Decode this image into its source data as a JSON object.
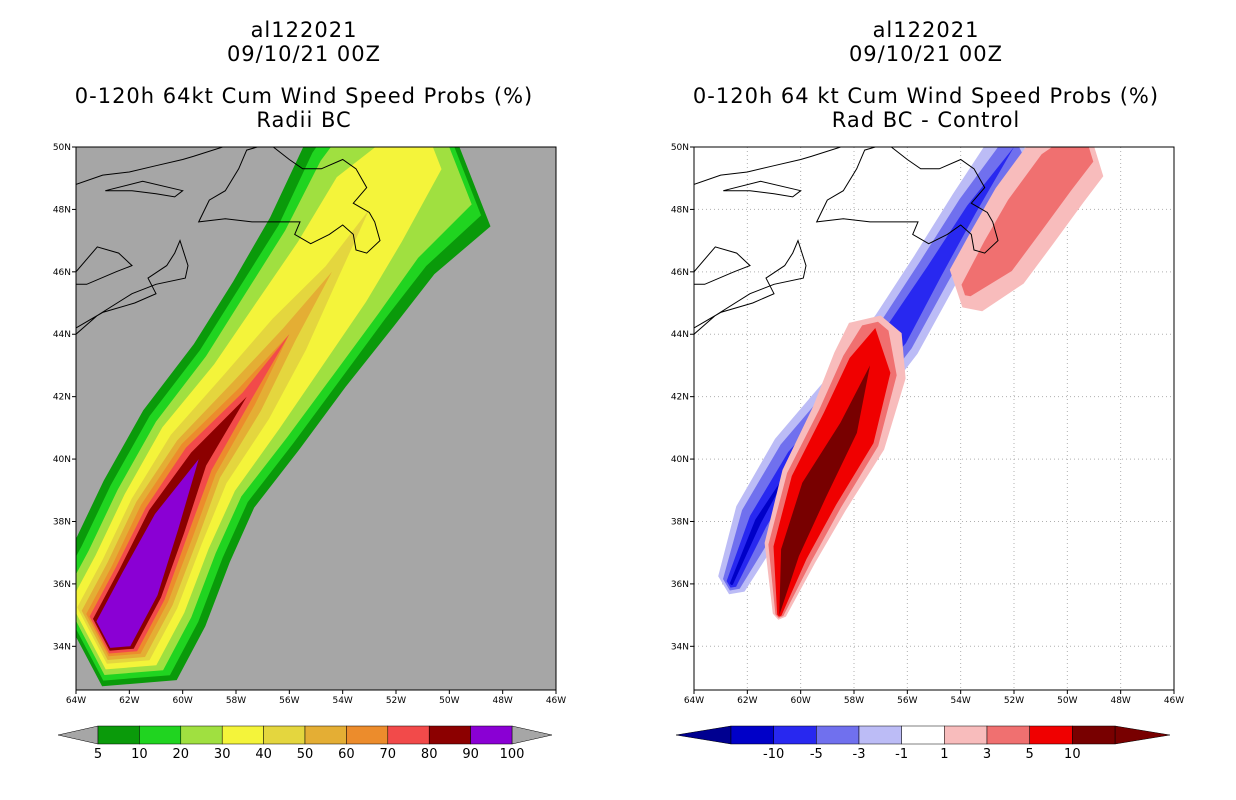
{
  "chart_data": [
    {
      "type": "heatmap",
      "storm_id": "al122021",
      "date": "09/10/21 00Z",
      "title": "0-120h 64kt Cum Wind Speed Probs (%)",
      "subtitle": "Radii BC",
      "xlim": [
        -64,
        -46
      ],
      "ylim": [
        32.6,
        50
      ],
      "x_ticks": [
        "64W",
        "62W",
        "60W",
        "58W",
        "56W",
        "54W",
        "52W",
        "50W",
        "48W",
        "46W"
      ],
      "y_ticks": [
        "34N",
        "36N",
        "38N",
        "40N",
        "42N",
        "44N",
        "46N",
        "48N",
        "50N"
      ],
      "grid": false,
      "background": "#a6a6a6",
      "colorbar": {
        "labels": [
          "5",
          "10",
          "20",
          "30",
          "40",
          "50",
          "60",
          "70",
          "80",
          "90",
          "100"
        ],
        "colors": [
          "#0a9a0a",
          "#20d420",
          "#a0e040",
          "#f4f43a",
          "#e4d63e",
          "#e4ae34",
          "#ec8c2c",
          "#f24a4a",
          "#8c0000",
          "#8a00d4"
        ],
        "under": "#a6a6a6",
        "over": "#a6a6a6"
      },
      "track": [
        [
          -62.6,
          34.4
        ],
        [
          -61.6,
          36
        ],
        [
          -60.6,
          38
        ],
        [
          -59.4,
          40
        ],
        [
          -57.6,
          42
        ],
        [
          -56,
          44
        ],
        [
          -54.4,
          46
        ],
        [
          -53,
          48
        ],
        [
          -51,
          50
        ]
      ],
      "contours": [
        {
          "level": 5,
          "color": "#0a9a0a",
          "width": [
            2.8,
            2.8,
            2.7,
            2.6,
            2.6,
            2.7,
            2.9,
            3.2,
            3.6
          ]
        },
        {
          "level": 10,
          "color": "#20d420",
          "width": [
            2.5,
            2.5,
            2.4,
            2.3,
            2.3,
            2.4,
            2.5,
            2.8,
            3.1
          ]
        },
        {
          "level": 20,
          "color": "#a0e040",
          "width": [
            2.2,
            2.2,
            2.1,
            2.0,
            2.0,
            2.1,
            2.2,
            2.4,
            2.6
          ]
        },
        {
          "level": 30,
          "color": "#f4f43a",
          "width": [
            1.9,
            1.9,
            1.8,
            1.7,
            1.6,
            1.6,
            1.6,
            1.6,
            1.0
          ]
        },
        {
          "level": 40,
          "color": "#e4d63e",
          "width": [
            1.6,
            1.6,
            1.5,
            1.3,
            1.1,
            0.8,
            0.3,
            0.0,
            0.0
          ]
        },
        {
          "level": 50,
          "color": "#e4ae34",
          "width": [
            1.4,
            1.4,
            1.3,
            1.0,
            0.7,
            0.3,
            0.0,
            0.0,
            0.0
          ]
        },
        {
          "level": 60,
          "color": "#ec8c2c",
          "width": [
            1.2,
            1.2,
            1.1,
            0.8,
            0.4,
            0.0,
            0.0,
            0.0,
            0.0
          ]
        },
        {
          "level": 70,
          "color": "#f24a4a",
          "width": [
            1.05,
            1.05,
            0.9,
            0.6,
            0.2,
            0.0,
            0.0,
            0.0,
            0.0
          ]
        },
        {
          "level": 80,
          "color": "#8c0000",
          "width": [
            0.9,
            0.9,
            0.75,
            0.35,
            0.0,
            0.0,
            0.0,
            0.0,
            0.0
          ]
        },
        {
          "level": 90,
          "color": "#8a00d4",
          "width": [
            0.75,
            0.75,
            0.5,
            0.0,
            0.0,
            0.0,
            0.0,
            0.0,
            0.0
          ]
        }
      ]
    },
    {
      "type": "heatmap",
      "storm_id": "al122021",
      "date": "09/10/21 00Z",
      "title": "0-120h 64 kt Cum Wind Speed Probs (%)",
      "subtitle": "Rad BC - Control",
      "xlim": [
        -64,
        -46
      ],
      "ylim": [
        32.6,
        50
      ],
      "x_ticks": [
        "64W",
        "62W",
        "60W",
        "58W",
        "56W",
        "54W",
        "52W",
        "50W",
        "48W",
        "46W"
      ],
      "y_ticks": [
        "34N",
        "36N",
        "38N",
        "40N",
        "42N",
        "44N",
        "46N",
        "48N",
        "50N"
      ],
      "grid": true,
      "background": "#ffffff",
      "colorbar": {
        "labels": [
          "-10",
          "-5",
          "-3",
          "-1",
          "1",
          "3",
          "5",
          "10"
        ],
        "colors": [
          "#0000c8",
          "#2828f0",
          "#7070ee",
          "#bcbcf6",
          "#ffffff",
          "#f8bcbc",
          "#f07070",
          "#f00000",
          "#780000"
        ],
        "under": "#000090",
        "over": "#780000"
      },
      "negative_band": {
        "track": [
          [
            -62.6,
            36
          ],
          [
            -61.6,
            38
          ],
          [
            -60.2,
            40
          ],
          [
            -58.2,
            42
          ],
          [
            -56.4,
            44
          ],
          [
            -55,
            46
          ],
          [
            -53.6,
            48
          ],
          [
            -52,
            50
          ]
        ],
        "levels": [
          {
            "level": -1,
            "color": "#bcbcf6",
            "width": [
              0.55,
              0.95,
              1.0,
              1.0,
              1.0,
              0.9,
              0.85,
              0.9
            ]
          },
          {
            "level": -3,
            "color": "#7070ee",
            "width": [
              0.35,
              0.7,
              0.72,
              0.72,
              0.72,
              0.62,
              0.55,
              0.45
            ]
          },
          {
            "level": -5,
            "color": "#2828f0",
            "width": [
              0.2,
              0.35,
              0.35,
              0.3,
              0.45,
              0.3,
              0.2,
              0.0
            ]
          },
          {
            "level": -10,
            "color": "#0000c8",
            "width": [
              0.06,
              0.12,
              0.0,
              0.0,
              0.0,
              0.0,
              0.0,
              0.0
            ]
          }
        ]
      },
      "positive_band": {
        "track": [
          [
            -60.8,
            35
          ],
          [
            -60.4,
            37
          ],
          [
            -59.5,
            39
          ],
          [
            -58.2,
            41
          ],
          [
            -57.4,
            43
          ],
          [
            -57.2,
            44.2
          ]
        ],
        "levels": [
          {
            "level": 1,
            "color": "#f8bcbc",
            "width": [
              0.25,
              1.0,
              1.35,
              1.5,
              1.4,
              1.0
            ]
          },
          {
            "level": 3,
            "color": "#f07070",
            "width": [
              0.15,
              0.85,
              1.15,
              1.25,
              1.05,
              0.5
            ]
          },
          {
            "level": 5,
            "color": "#f00000",
            "width": [
              0.08,
              0.65,
              0.95,
              1.05,
              0.8,
              0.0
            ]
          },
          {
            "level": 10,
            "color": "#780000",
            "width": [
              0.0,
              0.35,
              0.5,
              0.35,
              0.0,
              0.0
            ]
          }
        ]
      },
      "positive_band_2": {
        "track": [
          [
            -53.8,
            45.4
          ],
          [
            -52.6,
            46.5
          ],
          [
            -51.6,
            47.8
          ],
          [
            -50.4,
            49.2
          ],
          [
            -49.4,
            50
          ]
        ],
        "levels": [
          {
            "level": 1,
            "color": "#f8bcbc",
            "width": [
              0.9,
              1.3,
              1.4,
              1.4,
              1.2
            ]
          },
          {
            "level": 3,
            "color": "#f07070",
            "width": [
              0.25,
              0.7,
              0.8,
              0.8,
              0.6
            ]
          }
        ]
      }
    }
  ],
  "coastlines": {
    "land_outlines": [
      [
        [
          -62.9,
          48.6
        ],
        [
          -61.9,
          48.6
        ],
        [
          -61.0,
          48.5
        ],
        [
          -60.3,
          48.4
        ],
        [
          -60.0,
          48.6
        ],
        [
          -61.5,
          48.9
        ],
        [
          -62.9,
          48.6
        ]
      ],
      [
        [
          -64,
          46.0
        ],
        [
          -63.2,
          46.8
        ],
        [
          -62.4,
          46.6
        ],
        [
          -61.9,
          46.2
        ],
        [
          -62.5,
          46.0
        ],
        [
          -63.6,
          45.6
        ],
        [
          -64,
          45.6
        ]
      ],
      [
        [
          -64,
          44.2
        ],
        [
          -63.0,
          44.7
        ],
        [
          -61.8,
          45.0
        ],
        [
          -61.0,
          45.3
        ],
        [
          -61.3,
          45.8
        ],
        [
          -60.6,
          46.2
        ],
        [
          -60.3,
          46.6
        ],
        [
          -60.1,
          47.0
        ],
        [
          -59.8,
          46.2
        ],
        [
          -59.9,
          45.8
        ],
        [
          -61.0,
          45.6
        ],
        [
          -61.9,
          45.3
        ],
        [
          -63.2,
          44.6
        ],
        [
          -64,
          44.0
        ]
      ],
      [
        [
          -59.4,
          47.6
        ],
        [
          -59.0,
          48.3
        ],
        [
          -58.4,
          48.6
        ],
        [
          -57.9,
          49.3
        ],
        [
          -57.6,
          49.9
        ],
        [
          -57.2,
          50.0
        ],
        [
          -56.6,
          50.0
        ],
        [
          -56.0,
          49.6
        ],
        [
          -55.5,
          49.3
        ],
        [
          -54.8,
          49.3
        ],
        [
          -54.0,
          49.6
        ],
        [
          -53.5,
          49.3
        ],
        [
          -53.1,
          48.7
        ],
        [
          -53.6,
          48.2
        ],
        [
          -53.0,
          47.9
        ],
        [
          -52.8,
          47.6
        ],
        [
          -52.6,
          47.0
        ],
        [
          -53.1,
          46.6
        ],
        [
          -53.5,
          46.7
        ],
        [
          -53.6,
          47.2
        ],
        [
          -54.0,
          47.5
        ],
        [
          -54.5,
          47.2
        ],
        [
          -55.2,
          46.9
        ],
        [
          -55.8,
          47.2
        ],
        [
          -55.6,
          47.6
        ],
        [
          -56.2,
          47.6
        ],
        [
          -57.4,
          47.6
        ],
        [
          -58.4,
          47.7
        ],
        [
          -59.4,
          47.6
        ]
      ]
    ],
    "mainland": [
      [
        -64,
        48.8
      ],
      [
        -63.0,
        49.1
      ],
      [
        -62.0,
        49.2
      ],
      [
        -61.0,
        49.4
      ],
      [
        -60.0,
        49.6
      ],
      [
        -59.6,
        49.7
      ],
      [
        -58.5,
        50.0
      ]
    ]
  }
}
